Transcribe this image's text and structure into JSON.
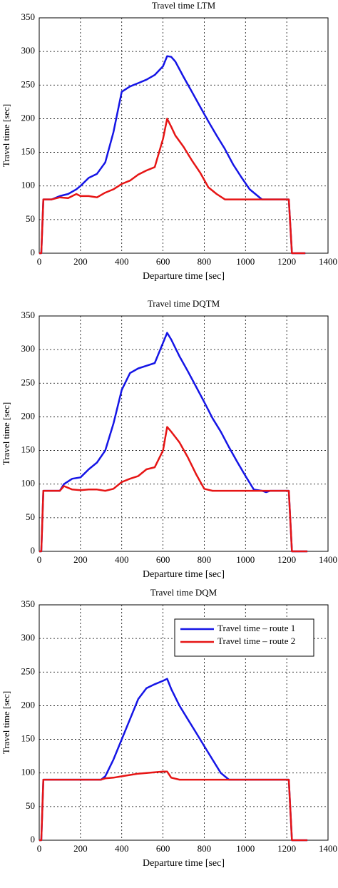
{
  "chart_data": [
    {
      "type": "line",
      "title": "Travel time LTM",
      "xlabel": "Departure time [sec]",
      "ylabel": "Travel time [sec]",
      "x": [
        0,
        10,
        20,
        60,
        100,
        140,
        180,
        200,
        240,
        280,
        320,
        360,
        400,
        440,
        480,
        520,
        560,
        600,
        620,
        640,
        660,
        700,
        740,
        780,
        820,
        860,
        900,
        940,
        980,
        1020,
        1060,
        1080,
        1100,
        1140,
        1180,
        1210,
        1225,
        1260,
        1290
      ],
      "series": [
        {
          "color": "#1515e6",
          "values": [
            0,
            0,
            80,
            80,
            85,
            88,
            95,
            100,
            112,
            118,
            135,
            180,
            240,
            248,
            253,
            258,
            265,
            278,
            293,
            292,
            285,
            262,
            240,
            218,
            196,
            175,
            155,
            132,
            113,
            95,
            85,
            80,
            80,
            80,
            80,
            80,
            0,
            0,
            0
          ]
        },
        {
          "color": "#e61515",
          "values": [
            0,
            0,
            80,
            80,
            83,
            82,
            88,
            85,
            85,
            83,
            90,
            95,
            103,
            108,
            117,
            123,
            128,
            170,
            200,
            188,
            175,
            158,
            138,
            120,
            98,
            88,
            80,
            80,
            80,
            80,
            80,
            80,
            80,
            80,
            80,
            80,
            0,
            0,
            0
          ]
        }
      ],
      "xlim": [
        0,
        1400
      ],
      "ylim": [
        0,
        350
      ],
      "xticks": [
        0,
        200,
        400,
        600,
        800,
        1000,
        1200,
        1400
      ],
      "yticks": [
        0,
        50,
        100,
        150,
        200,
        250,
        300,
        350
      ],
      "grid": true
    },
    {
      "type": "line",
      "title": "Travel time DQTM",
      "xlabel": "Departure time [sec]",
      "ylabel": "Travel time [sec]",
      "x": [
        0,
        10,
        20,
        100,
        120,
        160,
        200,
        240,
        280,
        320,
        360,
        400,
        440,
        480,
        520,
        560,
        600,
        620,
        640,
        680,
        720,
        760,
        800,
        840,
        880,
        920,
        960,
        1000,
        1040,
        1080,
        1100,
        1120,
        1160,
        1210,
        1225,
        1260,
        1300
      ],
      "series": [
        {
          "color": "#1515e6",
          "values": [
            0,
            0,
            90,
            90,
            100,
            108,
            110,
            122,
            132,
            150,
            190,
            240,
            265,
            272,
            276,
            280,
            310,
            325,
            315,
            290,
            268,
            245,
            222,
            198,
            178,
            155,
            133,
            112,
            92,
            90,
            88,
            90,
            90,
            90,
            0,
            0,
            0
          ]
        },
        {
          "color": "#e61515",
          "values": [
            0,
            0,
            90,
            90,
            97,
            92,
            91,
            92,
            92,
            90,
            93,
            103,
            108,
            112,
            122,
            125,
            150,
            185,
            178,
            162,
            140,
            115,
            93,
            90,
            90,
            90,
            90,
            90,
            90,
            90,
            90,
            90,
            90,
            90,
            0,
            0,
            0
          ]
        }
      ],
      "xlim": [
        0,
        1400
      ],
      "ylim": [
        0,
        350
      ],
      "xticks": [
        0,
        200,
        400,
        600,
        800,
        1000,
        1200,
        1400
      ],
      "yticks": [
        0,
        50,
        100,
        150,
        200,
        250,
        300,
        350
      ],
      "grid": true
    },
    {
      "type": "line",
      "title": "Travel time DQM",
      "xlabel": "Departure time [sec]",
      "ylabel": "Travel time [sec]",
      "x": [
        0,
        10,
        20,
        100,
        200,
        300,
        320,
        360,
        400,
        440,
        480,
        520,
        560,
        600,
        620,
        640,
        680,
        720,
        760,
        800,
        840,
        880,
        920,
        960,
        1000,
        1100,
        1210,
        1225,
        1260,
        1300
      ],
      "series": [
        {
          "name": "Travel time – route 1",
          "color": "#1515e6",
          "values": [
            0,
            0,
            90,
            90,
            90,
            90,
            95,
            120,
            150,
            180,
            210,
            226,
            232,
            237,
            240,
            225,
            200,
            180,
            160,
            140,
            120,
            100,
            90,
            90,
            90,
            90,
            90,
            0,
            0,
            0
          ]
        },
        {
          "name": "Travel time – route 2",
          "color": "#e61515",
          "values": [
            0,
            0,
            90,
            90,
            90,
            90,
            92,
            93,
            95,
            97,
            99,
            100,
            101,
            102,
            102,
            93,
            90,
            90,
            90,
            90,
            90,
            90,
            90,
            90,
            90,
            90,
            90,
            0,
            0,
            0
          ]
        }
      ],
      "xlim": [
        0,
        1400
      ],
      "ylim": [
        0,
        350
      ],
      "xticks": [
        0,
        200,
        400,
        600,
        800,
        1000,
        1200,
        1400
      ],
      "yticks": [
        0,
        50,
        100,
        150,
        200,
        250,
        300,
        350
      ],
      "grid": true,
      "legend": "upper right"
    }
  ]
}
